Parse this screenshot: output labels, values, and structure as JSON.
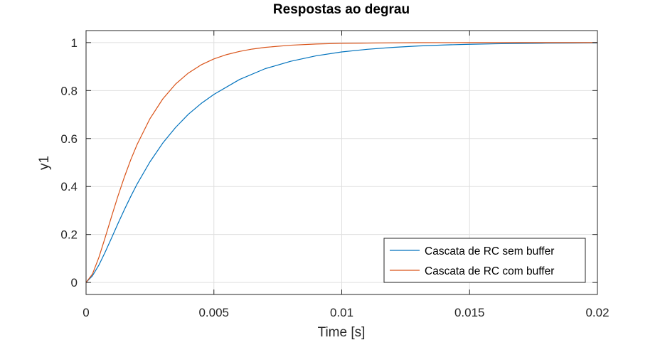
{
  "chart_data": {
    "type": "line",
    "title": "Respostas ao degrau",
    "xlabel": "Time [s]",
    "ylabel": "y1",
    "xlim": [
      0,
      0.02
    ],
    "ylim": [
      -0.05,
      1.05
    ],
    "xticks": [
      0,
      0.005,
      0.01,
      0.015,
      0.02
    ],
    "xtick_labels": [
      "0",
      "0.005",
      "0.01",
      "0.015",
      "0.02"
    ],
    "yticks": [
      0,
      0.2,
      0.4,
      0.6,
      0.8,
      1
    ],
    "ytick_labels": [
      "0",
      "0.2",
      "0.4",
      "0.6",
      "0.8",
      "1"
    ],
    "grid": true,
    "legend_position": "bottom-right",
    "series": [
      {
        "name": "Cascata de RC sem buffer",
        "color": "#0072BD",
        "x": [
          0,
          0.00025,
          0.0005,
          0.00075,
          0.001,
          0.00125,
          0.0015,
          0.00175,
          0.002,
          0.0025,
          0.003,
          0.0035,
          0.004,
          0.0045,
          0.005,
          0.006,
          0.007,
          0.008,
          0.009,
          0.01,
          0.011,
          0.012,
          0.013,
          0.014,
          0.015,
          0.016,
          0.017,
          0.018,
          0.019,
          0.02
        ],
        "y": [
          0,
          0.028,
          0.072,
          0.127,
          0.186,
          0.246,
          0.304,
          0.359,
          0.411,
          0.503,
          0.581,
          0.646,
          0.701,
          0.746,
          0.784,
          0.846,
          0.891,
          0.922,
          0.945,
          0.961,
          0.972,
          0.98,
          0.986,
          0.99,
          0.993,
          0.995,
          0.9965,
          0.9975,
          0.9982,
          0.9988
        ]
      },
      {
        "name": "Cascata de RC com buffer",
        "color": "#D95319",
        "x": [
          0,
          0.00025,
          0.0005,
          0.00075,
          0.001,
          0.00125,
          0.0015,
          0.00175,
          0.002,
          0.0025,
          0.003,
          0.0035,
          0.004,
          0.0045,
          0.005,
          0.0055,
          0.006,
          0.0065,
          0.007,
          0.008,
          0.009,
          0.01,
          0.011,
          0.012,
          0.013,
          0.014,
          0.015,
          0.016,
          0.017,
          0.018,
          0.019,
          0.02
        ],
        "y": [
          0,
          0.035,
          0.104,
          0.188,
          0.276,
          0.361,
          0.44,
          0.512,
          0.576,
          0.683,
          0.765,
          0.827,
          0.873,
          0.907,
          0.932,
          0.95,
          0.963,
          0.973,
          0.98,
          0.989,
          0.994,
          0.997,
          0.998,
          0.999,
          0.9995,
          0.9998,
          0.9999,
          1,
          1,
          1,
          1,
          1
        ]
      }
    ]
  }
}
